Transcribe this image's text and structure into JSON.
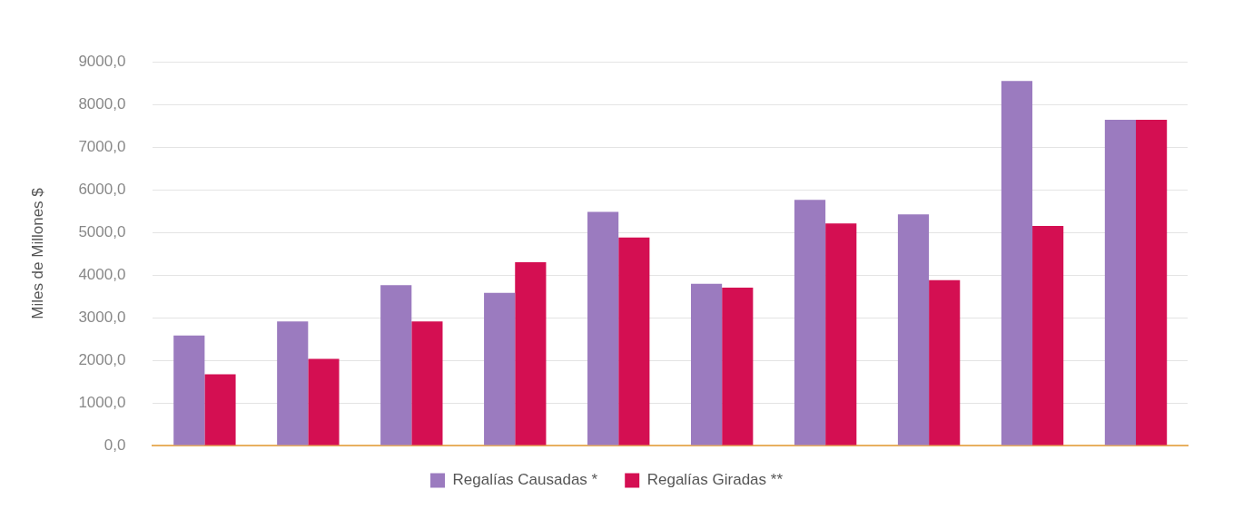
{
  "chart_data": {
    "type": "bar",
    "ylabel": "Miles de Millones $",
    "categories": [
      null,
      null,
      null,
      null,
      null,
      null,
      null,
      null,
      null,
      null
    ],
    "series": [
      {
        "name": "Regalías Causadas *",
        "color": "#9b7bbf",
        "values": [
          2580,
          2910,
          3760,
          3580,
          5480,
          3790,
          5760,
          5420,
          8550,
          7640
        ]
      },
      {
        "name": "Regalías Giradas **",
        "color": "#d40f52",
        "values": [
          1670,
          2030,
          2910,
          4300,
          4880,
          3700,
          5210,
          3880,
          5150,
          7640
        ]
      }
    ],
    "ylim": [
      0,
      9000
    ],
    "yticks": [
      {
        "value": 0,
        "label": "0,0"
      },
      {
        "value": 1000,
        "label": "1000,0"
      },
      {
        "value": 2000,
        "label": "2000,0"
      },
      {
        "value": 3000,
        "label": "3000,0"
      },
      {
        "value": 4000,
        "label": "4000,0"
      },
      {
        "value": 5000,
        "label": "5000,0"
      },
      {
        "value": 6000,
        "label": "6000,0"
      },
      {
        "value": 7000,
        "label": "7000,0"
      },
      {
        "value": 8000,
        "label": "8000,0"
      },
      {
        "value": 9000,
        "label": "9000,0"
      }
    ],
    "grid": "y",
    "legend": "bottom"
  }
}
